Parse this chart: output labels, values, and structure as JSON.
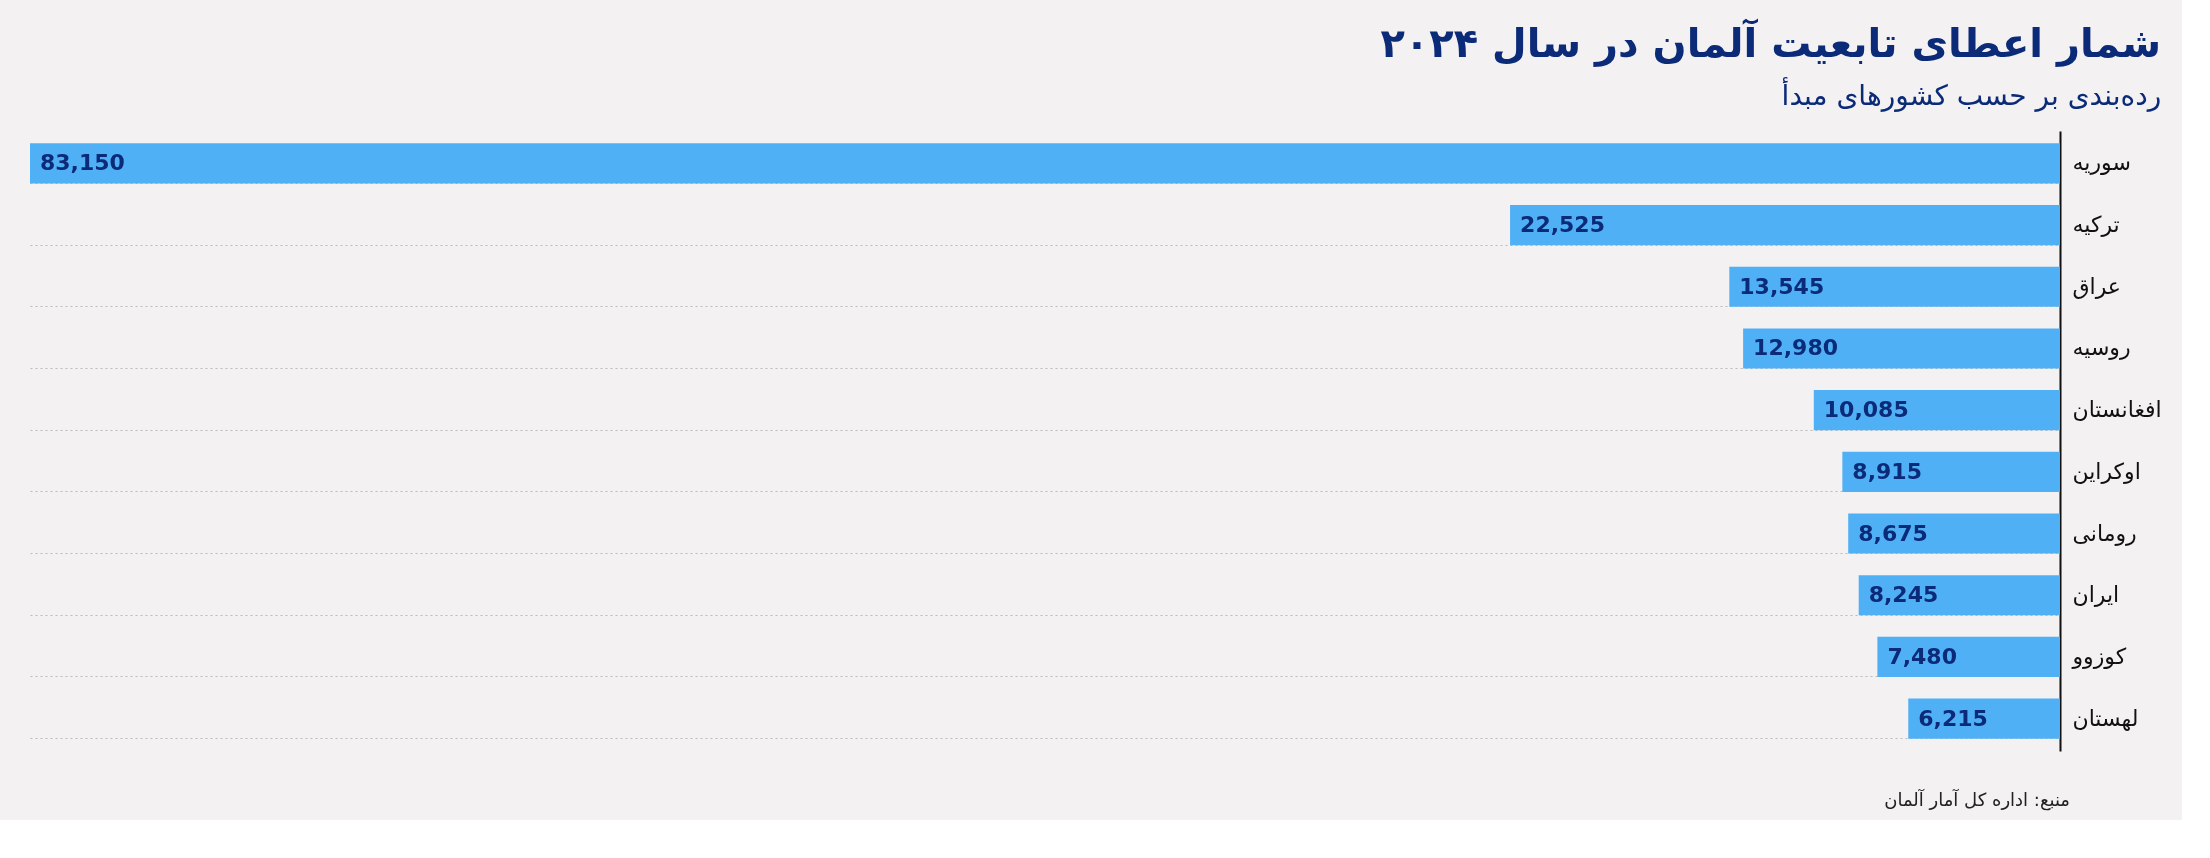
{
  "chart_data": {
    "type": "bar",
    "orientation": "horizontal",
    "title": "شمار اعطای تابعیت آلمان در سال ۲۰۲۴",
    "subtitle": "رده‌بندی بر حسب کشورهای مبدأ",
    "categories": [
      "سوریه",
      "ترکیه",
      "عراق",
      "روسیه",
      "افغانستان",
      "اوکراین",
      "رومانی",
      "ایران",
      "کوزوو",
      "لهستان"
    ],
    "values": [
      83150,
      22525,
      13545,
      12980,
      10085,
      8915,
      8675,
      8245,
      7480,
      6215
    ],
    "value_labels": [
      "83,150",
      "22,525",
      "13,545",
      "12,980",
      "10,085",
      "8,915",
      "8,675",
      "8,245",
      "7,480",
      "6,215"
    ],
    "color": "#4fb0f5",
    "grid": "y",
    "annotations": [
      "منبع: اداره کل آمار آلمان"
    ]
  }
}
